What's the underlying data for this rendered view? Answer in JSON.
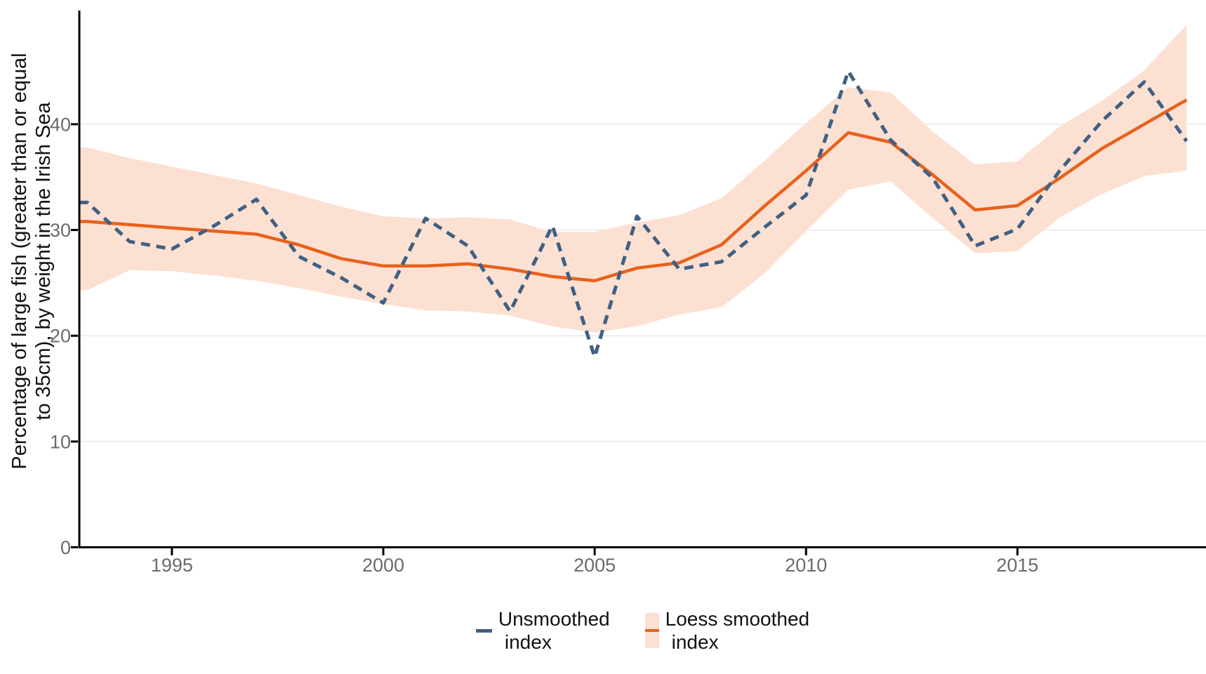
{
  "chart_data": {
    "type": "line",
    "title": "",
    "xlabel": "",
    "ylabel": "Percentage of large fish (greater than or equal to 35cm), by weight in the Irish Sea",
    "ylabel_lines": [
      "Percentage of large fish (greater than or equal",
      "to 35cm), by weight in the Irish Sea"
    ],
    "x": [
      1993,
      1994,
      1995,
      1996,
      1997,
      1998,
      1999,
      2000,
      2001,
      2002,
      2003,
      2004,
      2005,
      2006,
      2007,
      2008,
      2009,
      2010,
      2011,
      2012,
      2013,
      2014,
      2015,
      2016,
      2017,
      2018,
      2019
    ],
    "series": [
      {
        "name": "Unsmoothed index",
        "style": "dashed",
        "color": "#3f6083",
        "values": [
          32.6,
          28.9,
          28.2,
          30.4,
          32.9,
          27.5,
          25.5,
          23.1,
          31.1,
          28.5,
          22.3,
          30.4,
          18.0,
          31.3,
          26.3,
          27.0,
          30.2,
          33.3,
          45.0,
          38.5,
          34.9,
          28.5,
          30.1,
          35.6,
          40.3,
          44.0,
          38.4
        ]
      },
      {
        "name": "Loess smoothed index",
        "style": "solid",
        "color": "#e8611c",
        "values": [
          30.8,
          30.5,
          30.2,
          29.9,
          29.6,
          28.6,
          27.3,
          26.6,
          26.6,
          26.8,
          26.3,
          25.6,
          25.2,
          26.4,
          26.9,
          28.6,
          32.2,
          35.6,
          39.2,
          38.3,
          35.2,
          31.9,
          32.3,
          34.9,
          37.7,
          40.0,
          42.3
        ],
        "band": {
          "color": "#fce0d2",
          "upper": [
            37.8,
            36.8,
            36.0,
            35.2,
            34.4,
            33.3,
            32.2,
            31.3,
            31.1,
            31.2,
            31.0,
            29.8,
            29.8,
            30.7,
            31.4,
            33.0,
            36.5,
            40.1,
            43.5,
            43.0,
            39.3,
            36.2,
            36.5,
            39.8,
            42.2,
            45.1,
            49.4
          ],
          "lower": [
            24.3,
            26.2,
            26.1,
            25.7,
            25.2,
            24.5,
            23.7,
            23.0,
            22.4,
            22.3,
            21.9,
            20.9,
            20.3,
            20.9,
            22.0,
            22.7,
            25.8,
            29.9,
            33.8,
            34.6,
            31.1,
            27.8,
            28.0,
            31.2,
            33.4,
            35.1,
            35.6
          ]
        }
      }
    ],
    "xticks": [
      1995,
      2000,
      2005,
      2010,
      2015
    ],
    "yticks": [
      0,
      10,
      20,
      30,
      40
    ],
    "xlim": [
      1992.81,
      2019.46
    ],
    "ylim": [
      0,
      50.75
    ],
    "grid": "horizontal",
    "legend_position": "bottom",
    "colors": {
      "grid": "#e9e9e9",
      "axis": "#000000",
      "tick_text": "#6b6b6b",
      "title_text": "#111111"
    }
  },
  "legend": {
    "items": [
      {
        "line1": "Unsmoothed",
        "line2": "index"
      },
      {
        "line1": "Loess smoothed",
        "line2": "index"
      }
    ]
  }
}
